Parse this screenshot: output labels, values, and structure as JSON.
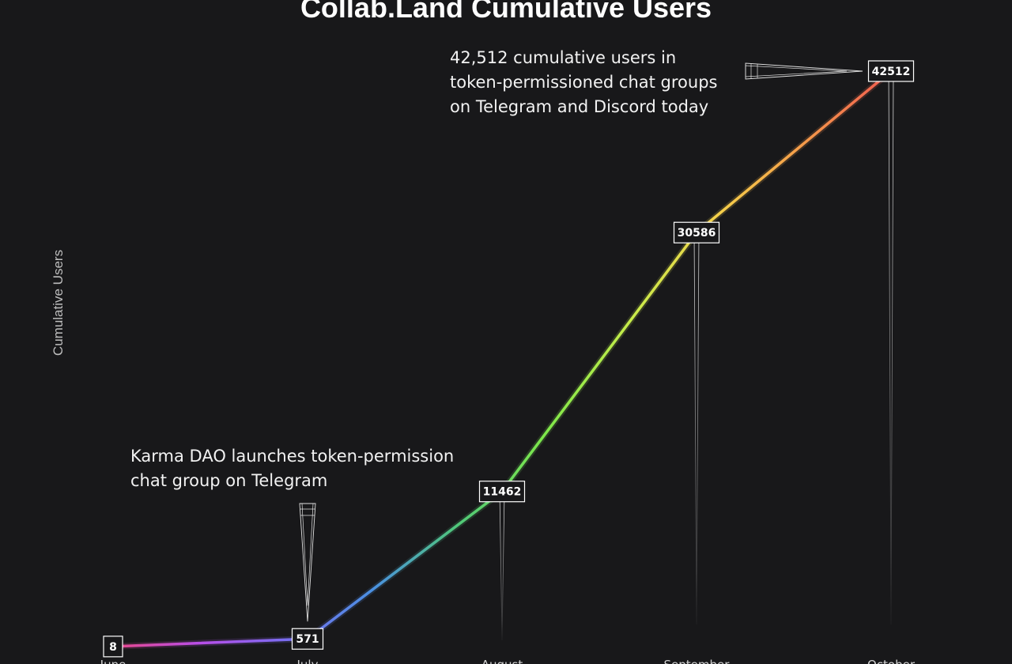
{
  "chart_data": {
    "type": "line",
    "title": "Collab.Land Cumulative Users",
    "ylabel": "Cumulative Users",
    "xlabel": "",
    "categories": [
      "June",
      "July",
      "August",
      "September",
      "October"
    ],
    "series": [
      {
        "values": [
          8,
          571,
          11462,
          30586,
          42512
        ]
      }
    ],
    "data_labels": [
      "8",
      "571",
      "11462",
      "30586",
      "42512"
    ],
    "ylim": [
      0,
      42512
    ],
    "grid": false,
    "legend": "none",
    "gradient_colors": [
      "#e8488a",
      "#b84ee8",
      "#7a6cf0",
      "#4a90e2",
      "#50c878",
      "#7ee84a",
      "#c8ec4a",
      "#f5d04a",
      "#f59a4a",
      "#f05a50"
    ],
    "annotations": [
      {
        "text_lines": [
          "Karma DAO launches token-permission",
          "chat group on Telegram"
        ],
        "category": "July"
      },
      {
        "text_lines": [
          "42,512 cumulative users in",
          "token-permissioned chat groups",
          "on Telegram and Discord today"
        ],
        "category": "October"
      }
    ]
  }
}
